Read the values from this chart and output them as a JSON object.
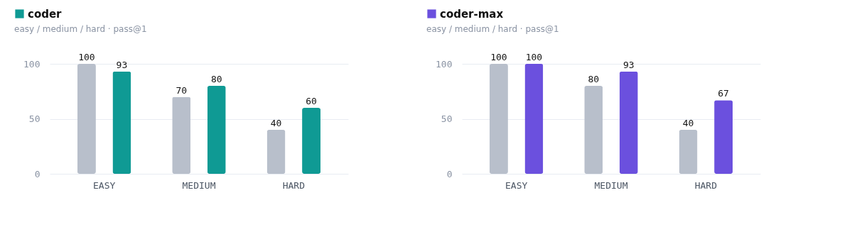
{
  "chart_data": [
    {
      "type": "bar",
      "subtitle": "easy / medium / hard · pass@1",
      "categories": [
        "EASY",
        "MEDIUM",
        "HARD"
      ],
      "series": [
        {
          "color": "#b8bfcb",
          "values": [
            100,
            70,
            40
          ]
        },
        {
          "name": "coder",
          "color": "#0f9a94",
          "values": [
            93,
            80,
            60
          ]
        }
      ],
      "ylim": [
        0,
        100
      ],
      "yticks": [
        0,
        50,
        100
      ],
      "grid": "y",
      "legend": "top left",
      "data_labels": true
    },
    {
      "type": "bar",
      "subtitle": "easy / medium / hard · pass@1",
      "categories": [
        "EASY",
        "MEDIUM",
        "HARD"
      ],
      "series": [
        {
          "color": "#b8bfcb",
          "values": [
            100,
            80,
            40
          ]
        },
        {
          "name": "coder-max",
          "color": "#6b50de",
          "values": [
            100,
            93,
            67
          ]
        }
      ],
      "ylim": [
        0,
        100
      ],
      "yticks": [
        0,
        50,
        100
      ],
      "grid": "y",
      "legend": "top left",
      "data_labels": true
    }
  ]
}
